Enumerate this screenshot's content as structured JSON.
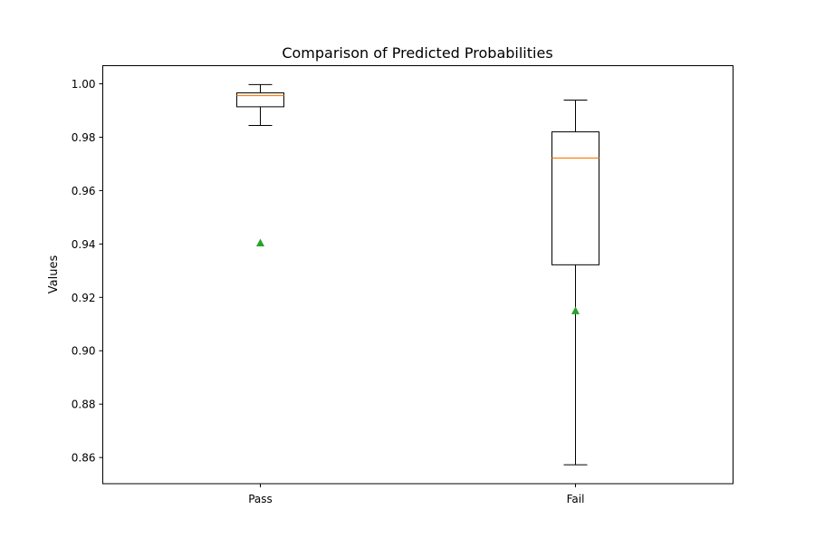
{
  "chart_data": {
    "type": "box",
    "title": "Comparison of Predicted Probabilities",
    "xlabel": "",
    "ylabel": "Values",
    "ylim": [
      0.8502,
      1.0068
    ],
    "yticks": [
      0.86,
      0.88,
      0.9,
      0.92,
      0.94,
      0.96,
      0.98,
      1.0
    ],
    "ytick_labels": [
      "0.86",
      "0.88",
      "0.90",
      "0.92",
      "0.94",
      "0.96",
      "0.98",
      "1.00"
    ],
    "categories": [
      "Pass",
      "Fail"
    ],
    "boxes": [
      {
        "name": "Pass",
        "whisker_low": 0.9844,
        "q1": 0.9914,
        "median": 0.9956,
        "q3": 0.9966,
        "whisker_high": 0.9997,
        "mean": 0.9403
      },
      {
        "name": "Fail",
        "whisker_low": 0.8573,
        "q1": 0.9322,
        "median": 0.9722,
        "q3": 0.982,
        "whisker_high": 0.9939,
        "mean": 0.9149
      }
    ],
    "colors": {
      "median": "#ff7f0e",
      "mean": "#2ca02c",
      "box": "#000000"
    },
    "grid": false
  }
}
